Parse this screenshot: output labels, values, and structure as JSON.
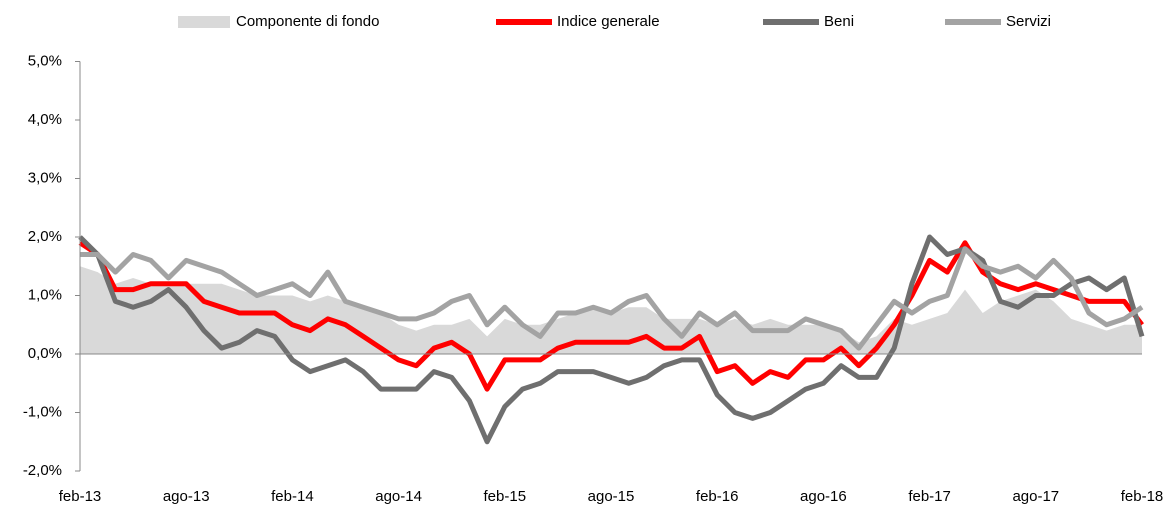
{
  "chart_data": {
    "type": "line",
    "categories": [
      "feb-13",
      null,
      null,
      null,
      null,
      null,
      "ago-13",
      null,
      null,
      null,
      null,
      null,
      "feb-14",
      null,
      null,
      null,
      null,
      null,
      "ago-14",
      null,
      null,
      null,
      null,
      null,
      "feb-15",
      null,
      null,
      null,
      null,
      null,
      "ago-15",
      null,
      null,
      null,
      null,
      null,
      "feb-16",
      null,
      null,
      null,
      null,
      null,
      "ago-16",
      null,
      null,
      null,
      null,
      null,
      "feb-17",
      null,
      null,
      null,
      null,
      null,
      "ago-17",
      null,
      null,
      null,
      null,
      null,
      "feb-18"
    ],
    "series": [
      {
        "name": "Componente di fondo",
        "style": "area",
        "color": "#d9d9d9",
        "values": [
          1.5,
          1.4,
          1.2,
          1.3,
          1.2,
          1.2,
          1.2,
          1.2,
          1.2,
          1.1,
          1.0,
          1.0,
          1.0,
          0.9,
          1.0,
          0.9,
          0.8,
          0.7,
          0.5,
          0.4,
          0.5,
          0.5,
          0.6,
          0.3,
          0.6,
          0.5,
          0.5,
          0.6,
          0.7,
          0.8,
          0.7,
          0.8,
          0.8,
          0.6,
          0.6,
          0.6,
          0.5,
          0.6,
          0.5,
          0.6,
          0.5,
          0.5,
          0.5,
          0.4,
          0.2,
          0.3,
          0.6,
          0.5,
          0.6,
          0.7,
          1.1,
          0.7,
          0.9,
          1.0,
          1.1,
          0.9,
          0.6,
          0.5,
          0.4,
          0.5,
          0.5
        ]
      },
      {
        "name": "Indice generale",
        "style": "line",
        "color": "#ff0000",
        "values": [
          1.9,
          1.7,
          1.1,
          1.1,
          1.2,
          1.2,
          1.2,
          0.9,
          0.8,
          0.7,
          0.7,
          0.7,
          0.5,
          0.4,
          0.6,
          0.5,
          0.3,
          0.1,
          -0.1,
          -0.2,
          0.1,
          0.2,
          0.0,
          -0.6,
          -0.1,
          -0.1,
          -0.1,
          0.1,
          0.2,
          0.2,
          0.2,
          0.2,
          0.3,
          0.1,
          0.1,
          0.3,
          -0.3,
          -0.2,
          -0.5,
          -0.3,
          -0.4,
          -0.1,
          -0.1,
          0.1,
          -0.2,
          0.1,
          0.5,
          1.0,
          1.6,
          1.4,
          1.9,
          1.4,
          1.2,
          1.1,
          1.2,
          1.1,
          1.0,
          0.9,
          0.9,
          0.9,
          0.5
        ]
      },
      {
        "name": "Beni",
        "style": "line",
        "color": "#6f6f6f",
        "values": [
          2.0,
          1.7,
          0.9,
          0.8,
          0.9,
          1.1,
          0.8,
          0.4,
          0.1,
          0.2,
          0.4,
          0.3,
          -0.1,
          -0.3,
          -0.2,
          -0.1,
          -0.3,
          -0.6,
          -0.6,
          -0.6,
          -0.3,
          -0.4,
          -0.8,
          -1.5,
          -0.9,
          -0.6,
          -0.5,
          -0.3,
          -0.3,
          -0.3,
          -0.4,
          -0.5,
          -0.4,
          -0.2,
          -0.1,
          -0.1,
          -0.7,
          -1.0,
          -1.1,
          -1.0,
          -0.8,
          -0.6,
          -0.5,
          -0.2,
          -0.4,
          -0.4,
          0.1,
          1.2,
          2.0,
          1.7,
          1.8,
          1.6,
          0.9,
          0.8,
          1.0,
          1.0,
          1.2,
          1.3,
          1.1,
          1.3,
          0.3
        ]
      },
      {
        "name": "Servizi",
        "style": "line",
        "color": "#a3a3a3",
        "values": [
          1.7,
          1.7,
          1.4,
          1.7,
          1.6,
          1.3,
          1.6,
          1.5,
          1.4,
          1.2,
          1.0,
          1.1,
          1.2,
          1.0,
          1.4,
          0.9,
          0.8,
          0.7,
          0.6,
          0.6,
          0.7,
          0.9,
          1.0,
          0.5,
          0.8,
          0.5,
          0.3,
          0.7,
          0.7,
          0.8,
          0.7,
          0.9,
          1.0,
          0.6,
          0.3,
          0.7,
          0.5,
          0.7,
          0.4,
          0.4,
          0.4,
          0.6,
          0.5,
          0.4,
          0.1,
          0.5,
          0.9,
          0.7,
          0.9,
          1.0,
          1.8,
          1.5,
          1.4,
          1.5,
          1.3,
          1.6,
          1.3,
          0.7,
          0.5,
          0.6,
          0.8
        ]
      }
    ],
    "ylim": [
      -2,
      5
    ],
    "yticks": [
      {
        "value": -2,
        "label": "-2,0%"
      },
      {
        "value": -1,
        "label": "-1,0%"
      },
      {
        "value": 0,
        "label": "0,0%"
      },
      {
        "value": 1,
        "label": "1,0%"
      },
      {
        "value": 2,
        "label": "2,0%"
      },
      {
        "value": 3,
        "label": "3,0%"
      },
      {
        "value": 4,
        "label": "4,0%"
      },
      {
        "value": 5,
        "label": "5,0%"
      }
    ],
    "legend": "top"
  }
}
